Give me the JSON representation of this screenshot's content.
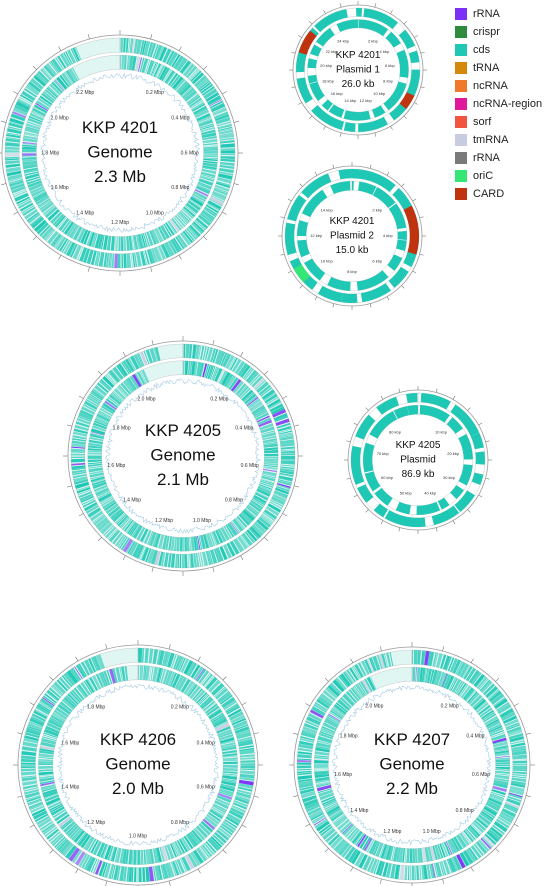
{
  "legend": [
    {
      "label": "rRNA",
      "color": "#7b2ff7"
    },
    {
      "label": "crispr",
      "color": "#2e8b3e"
    },
    {
      "label": "cds",
      "color": "#1ec8b4"
    },
    {
      "label": "tRNA",
      "color": "#d4890b"
    },
    {
      "label": "ncRNA",
      "color": "#f07a2a"
    },
    {
      "label": "ncRNA-region",
      "color": "#e0189c"
    },
    {
      "label": "sorf",
      "color": "#f2553f"
    },
    {
      "label": "tmRNA",
      "color": "#c8cce0"
    },
    {
      "label": "rRNA",
      "color": "#7a7a7a"
    },
    {
      "label": "oriC",
      "color": "#33e676"
    },
    {
      "label": "CARD",
      "color": "#c0330f"
    }
  ],
  "maps": [
    {
      "id": "kkp4201-genome",
      "type": "genome",
      "lines": [
        "KKP 4201",
        "Genome",
        "2.3 Mb"
      ],
      "ticks": [
        "0.2 Mbp",
        "0.4 Mbp",
        "0.6 Mbp",
        "0.8 Mbp",
        "1.0 Mbp",
        "1.2 Mbp",
        "1.4 Mbp",
        "1.6 Mbp",
        "1.8 Mbp",
        "2.0 Mbp",
        "2.2 Mbp"
      ]
    },
    {
      "id": "kkp4201-plasmid1",
      "type": "plasmid",
      "lines": [
        "KKP 4201",
        "Plasmid 1",
        "26.0 kb"
      ],
      "ticks": [
        "2 kbp",
        "4 kbp",
        "6 kbp",
        "8 kbp",
        "10 kbp",
        "12 kbp",
        "14 kbp",
        "16 kbp",
        "18 kbp",
        "20 kbp",
        "22 kbp",
        "24 kbp"
      ]
    },
    {
      "id": "kkp4201-plasmid2",
      "type": "plasmid",
      "lines": [
        "KKP 4201",
        "Plasmid 2",
        "15.0 kb"
      ],
      "ticks": [
        "2 kbp",
        "4 kbp",
        "6 kbp",
        "8 kbp",
        "10 kbp",
        "12 kbp",
        "14 kbp"
      ]
    },
    {
      "id": "kkp4205-genome",
      "type": "genome",
      "lines": [
        "KKP 4205",
        "Genome",
        "2.1 Mb"
      ],
      "ticks": [
        "0.2 Mbp",
        "0.4 Mbp",
        "0.6 Mbp",
        "0.8 Mbp",
        "1.0 Mbp",
        "1.2 Mbp",
        "1.4 Mbp",
        "1.6 Mbp",
        "1.8 Mbp",
        "2.0 Mbp"
      ]
    },
    {
      "id": "kkp4205-plasmid",
      "type": "plasmid",
      "lines": [
        "KKP 4205",
        "Plasmid",
        "86.9 kb"
      ],
      "ticks": [
        "10 kbp",
        "20 kbp",
        "30 kbp",
        "40 kbp",
        "50 kbp",
        "60 kbp",
        "70 kbp",
        "80 kbp"
      ]
    },
    {
      "id": "kkp4206-genome",
      "type": "genome",
      "lines": [
        "KKP 4206",
        "Genome",
        "2.0 Mb"
      ],
      "ticks": [
        "0.2 Mbp",
        "0.4 Mbp",
        "0.6 Mbp",
        "0.8 Mbp",
        "1.0 Mbp",
        "1.2 Mbp",
        "1.4 Mbp",
        "1.6 Mbp",
        "1.8 Mbp"
      ]
    },
    {
      "id": "kkp4207-genome",
      "type": "genome",
      "lines": [
        "KKP 4207",
        "Genome",
        "2.2 Mb"
      ],
      "ticks": [
        "0.2 Mbp",
        "0.4 Mbp",
        "0.6 Mbp",
        "0.8 Mbp",
        "1.0 Mbp",
        "1.2 Mbp",
        "1.4 Mbp",
        "1.6 Mbp",
        "1.8 Mbp",
        "2.0 Mbp"
      ]
    }
  ]
}
